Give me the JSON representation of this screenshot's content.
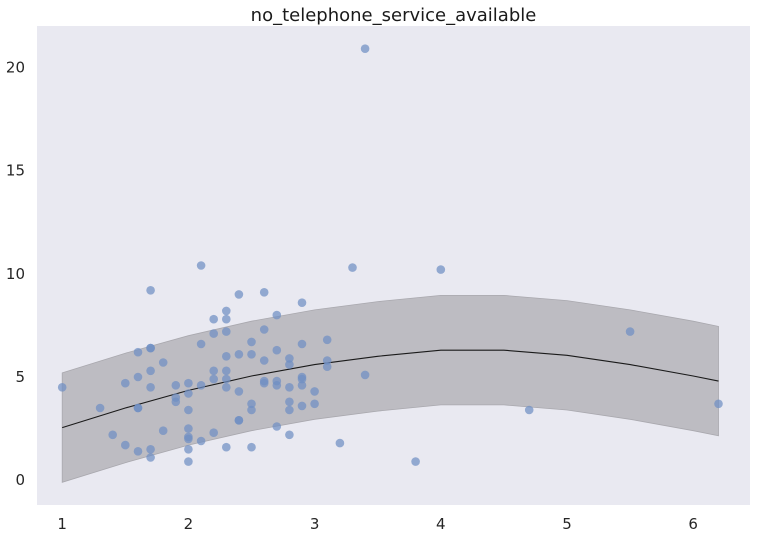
{
  "chart_data": {
    "type": "scatter",
    "title": "no_telephone_service_available",
    "xlabel": "",
    "ylabel": "",
    "xlim": [
      0.8,
      6.45
    ],
    "ylim": [
      -1.2,
      22
    ],
    "xticks": [
      1,
      2,
      3,
      4,
      5,
      6
    ],
    "yticks": [
      0,
      5,
      10,
      15,
      20
    ],
    "grid": false,
    "colors": {
      "background": "#e9e9f1",
      "points": "#6f8fc4",
      "band": "#bdbcc2",
      "line": "#1a1a1a"
    },
    "points": [
      [
        1.0,
        4.5
      ],
      [
        1.3,
        3.5
      ],
      [
        1.4,
        2.2
      ],
      [
        1.5,
        4.7
      ],
      [
        1.5,
        1.7
      ],
      [
        1.6,
        6.2
      ],
      [
        1.6,
        5.0
      ],
      [
        1.6,
        3.5
      ],
      [
        1.6,
        3.5
      ],
      [
        1.6,
        1.4
      ],
      [
        1.7,
        9.2
      ],
      [
        1.7,
        6.4
      ],
      [
        1.7,
        6.4
      ],
      [
        1.7,
        5.3
      ],
      [
        1.7,
        4.5
      ],
      [
        1.7,
        1.5
      ],
      [
        1.7,
        1.1
      ],
      [
        1.8,
        5.7
      ],
      [
        1.8,
        2.4
      ],
      [
        1.9,
        4.6
      ],
      [
        1.9,
        4.0
      ],
      [
        1.9,
        3.8
      ],
      [
        2.0,
        4.7
      ],
      [
        2.0,
        4.2
      ],
      [
        2.0,
        3.4
      ],
      [
        2.0,
        2.5
      ],
      [
        2.0,
        2.1
      ],
      [
        2.0,
        2.0
      ],
      [
        2.0,
        1.5
      ],
      [
        2.0,
        0.9
      ],
      [
        2.1,
        10.4
      ],
      [
        2.1,
        6.6
      ],
      [
        2.1,
        4.6
      ],
      [
        2.1,
        1.9
      ],
      [
        2.2,
        7.8
      ],
      [
        2.2,
        7.1
      ],
      [
        2.2,
        5.3
      ],
      [
        2.2,
        4.9
      ],
      [
        2.2,
        2.3
      ],
      [
        2.3,
        8.2
      ],
      [
        2.3,
        7.8
      ],
      [
        2.3,
        7.2
      ],
      [
        2.3,
        6.0
      ],
      [
        2.3,
        5.3
      ],
      [
        2.3,
        4.9
      ],
      [
        2.3,
        4.5
      ],
      [
        2.3,
        1.6
      ],
      [
        2.4,
        9.0
      ],
      [
        2.4,
        6.1
      ],
      [
        2.4,
        4.3
      ],
      [
        2.4,
        2.9
      ],
      [
        2.4,
        2.9
      ],
      [
        2.5,
        6.7
      ],
      [
        2.5,
        6.1
      ],
      [
        2.5,
        3.7
      ],
      [
        2.5,
        3.4
      ],
      [
        2.5,
        1.6
      ],
      [
        2.6,
        9.1
      ],
      [
        2.6,
        7.3
      ],
      [
        2.6,
        5.8
      ],
      [
        2.6,
        4.8
      ],
      [
        2.6,
        4.7
      ],
      [
        2.7,
        8.0
      ],
      [
        2.7,
        6.3
      ],
      [
        2.7,
        4.8
      ],
      [
        2.7,
        4.6
      ],
      [
        2.7,
        2.6
      ],
      [
        2.8,
        5.9
      ],
      [
        2.8,
        5.6
      ],
      [
        2.8,
        4.5
      ],
      [
        2.8,
        3.8
      ],
      [
        2.8,
        3.4
      ],
      [
        2.8,
        2.2
      ],
      [
        2.9,
        8.6
      ],
      [
        2.9,
        6.6
      ],
      [
        2.9,
        5.0
      ],
      [
        2.9,
        4.9
      ],
      [
        2.9,
        4.6
      ],
      [
        2.9,
        3.6
      ],
      [
        3.0,
        4.3
      ],
      [
        3.0,
        3.7
      ],
      [
        3.1,
        6.8
      ],
      [
        3.1,
        5.8
      ],
      [
        3.1,
        5.5
      ],
      [
        3.2,
        1.8
      ],
      [
        3.3,
        10.3
      ],
      [
        3.4,
        20.9
      ],
      [
        3.4,
        5.1
      ],
      [
        3.8,
        0.9
      ],
      [
        4.0,
        10.2
      ],
      [
        4.7,
        3.4
      ],
      [
        5.5,
        7.2
      ],
      [
        6.2,
        3.7
      ]
    ],
    "fit_line": {
      "x": [
        1.0,
        1.5,
        2.0,
        2.5,
        3.0,
        3.5,
        4.0,
        4.5,
        5.0,
        5.5,
        6.0,
        6.2
      ],
      "y": [
        2.55,
        3.5,
        4.35,
        5.05,
        5.6,
        6.0,
        6.3,
        6.3,
        6.05,
        5.6,
        5.05,
        4.8
      ]
    },
    "confidence_band": {
      "x": [
        1.0,
        1.5,
        2.0,
        2.5,
        3.0,
        3.5,
        4.0,
        4.5,
        5.0,
        5.5,
        6.0,
        6.2
      ],
      "lower": [
        -0.1,
        0.85,
        1.7,
        2.4,
        2.95,
        3.35,
        3.65,
        3.65,
        3.4,
        2.95,
        2.4,
        2.15
      ],
      "upper": [
        5.2,
        6.15,
        7.0,
        7.7,
        8.25,
        8.65,
        8.95,
        8.95,
        8.7,
        8.25,
        7.7,
        7.45
      ]
    }
  }
}
